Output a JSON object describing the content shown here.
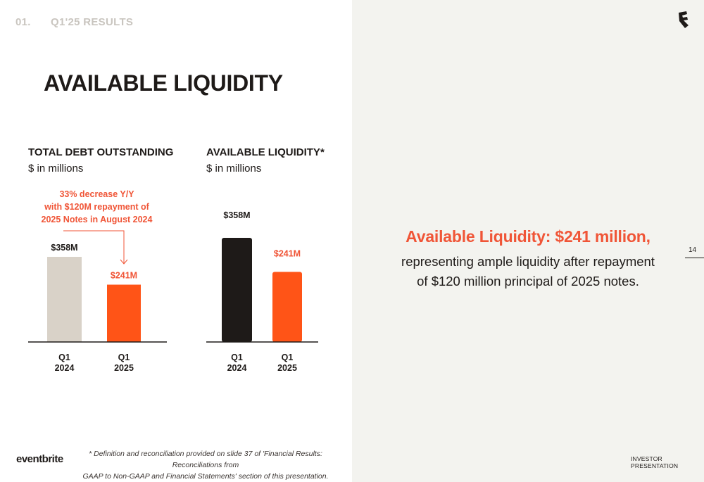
{
  "section": {
    "number": "01.",
    "title": "Q1'25 RESULTS"
  },
  "page_title": "AVAILABLE LIQUIDITY",
  "colors": {
    "accent": "#f05537",
    "bar_2025": "#ff5417",
    "bar_2024_debt": "#d9d2c8",
    "bar_2024_liq": "#1e1a18",
    "panel_bg": "#f3f3ef",
    "section_gray": "#c9c5bf"
  },
  "chart_data": [
    {
      "type": "bar",
      "title": "TOTAL DEBT OUTSTANDING",
      "subtitle": "$ in millions",
      "categories": [
        "Q1\n2024",
        "Q1\n2025"
      ],
      "values": [
        358,
        241
      ],
      "data_labels": [
        "$358M",
        "$241M"
      ],
      "annotation": [
        "33% decrease Y/Y",
        "with $120M repayment of",
        "2025 Notes in August 2024"
      ]
    },
    {
      "type": "bar",
      "title": "AVAILABLE LIQUIDITY*",
      "subtitle": "$ in millions",
      "categories": [
        "Q1\n2024",
        "Q1\n2025"
      ],
      "values": [
        358,
        241
      ],
      "data_labels": [
        "$358M",
        "$241M"
      ]
    }
  ],
  "callout": {
    "headline": "Available Liquidity: $241 million,",
    "body_line1": "representing ample liquidity after repayment",
    "body_line2": "of $120 million principal of 2025 notes."
  },
  "page_number": "14",
  "footnote": {
    "line1": "* Definition and reconciliation provided on slide 37 of 'Financial Results: Reconciliations from",
    "line2": "GAAP to Non-GAAP and Financial Statements' section of this presentation."
  },
  "logo_text": "eventbrite",
  "footer_label": "INVESTOR PRESENTATION",
  "icons": {
    "brand": "eventbrite-mark-icon"
  }
}
